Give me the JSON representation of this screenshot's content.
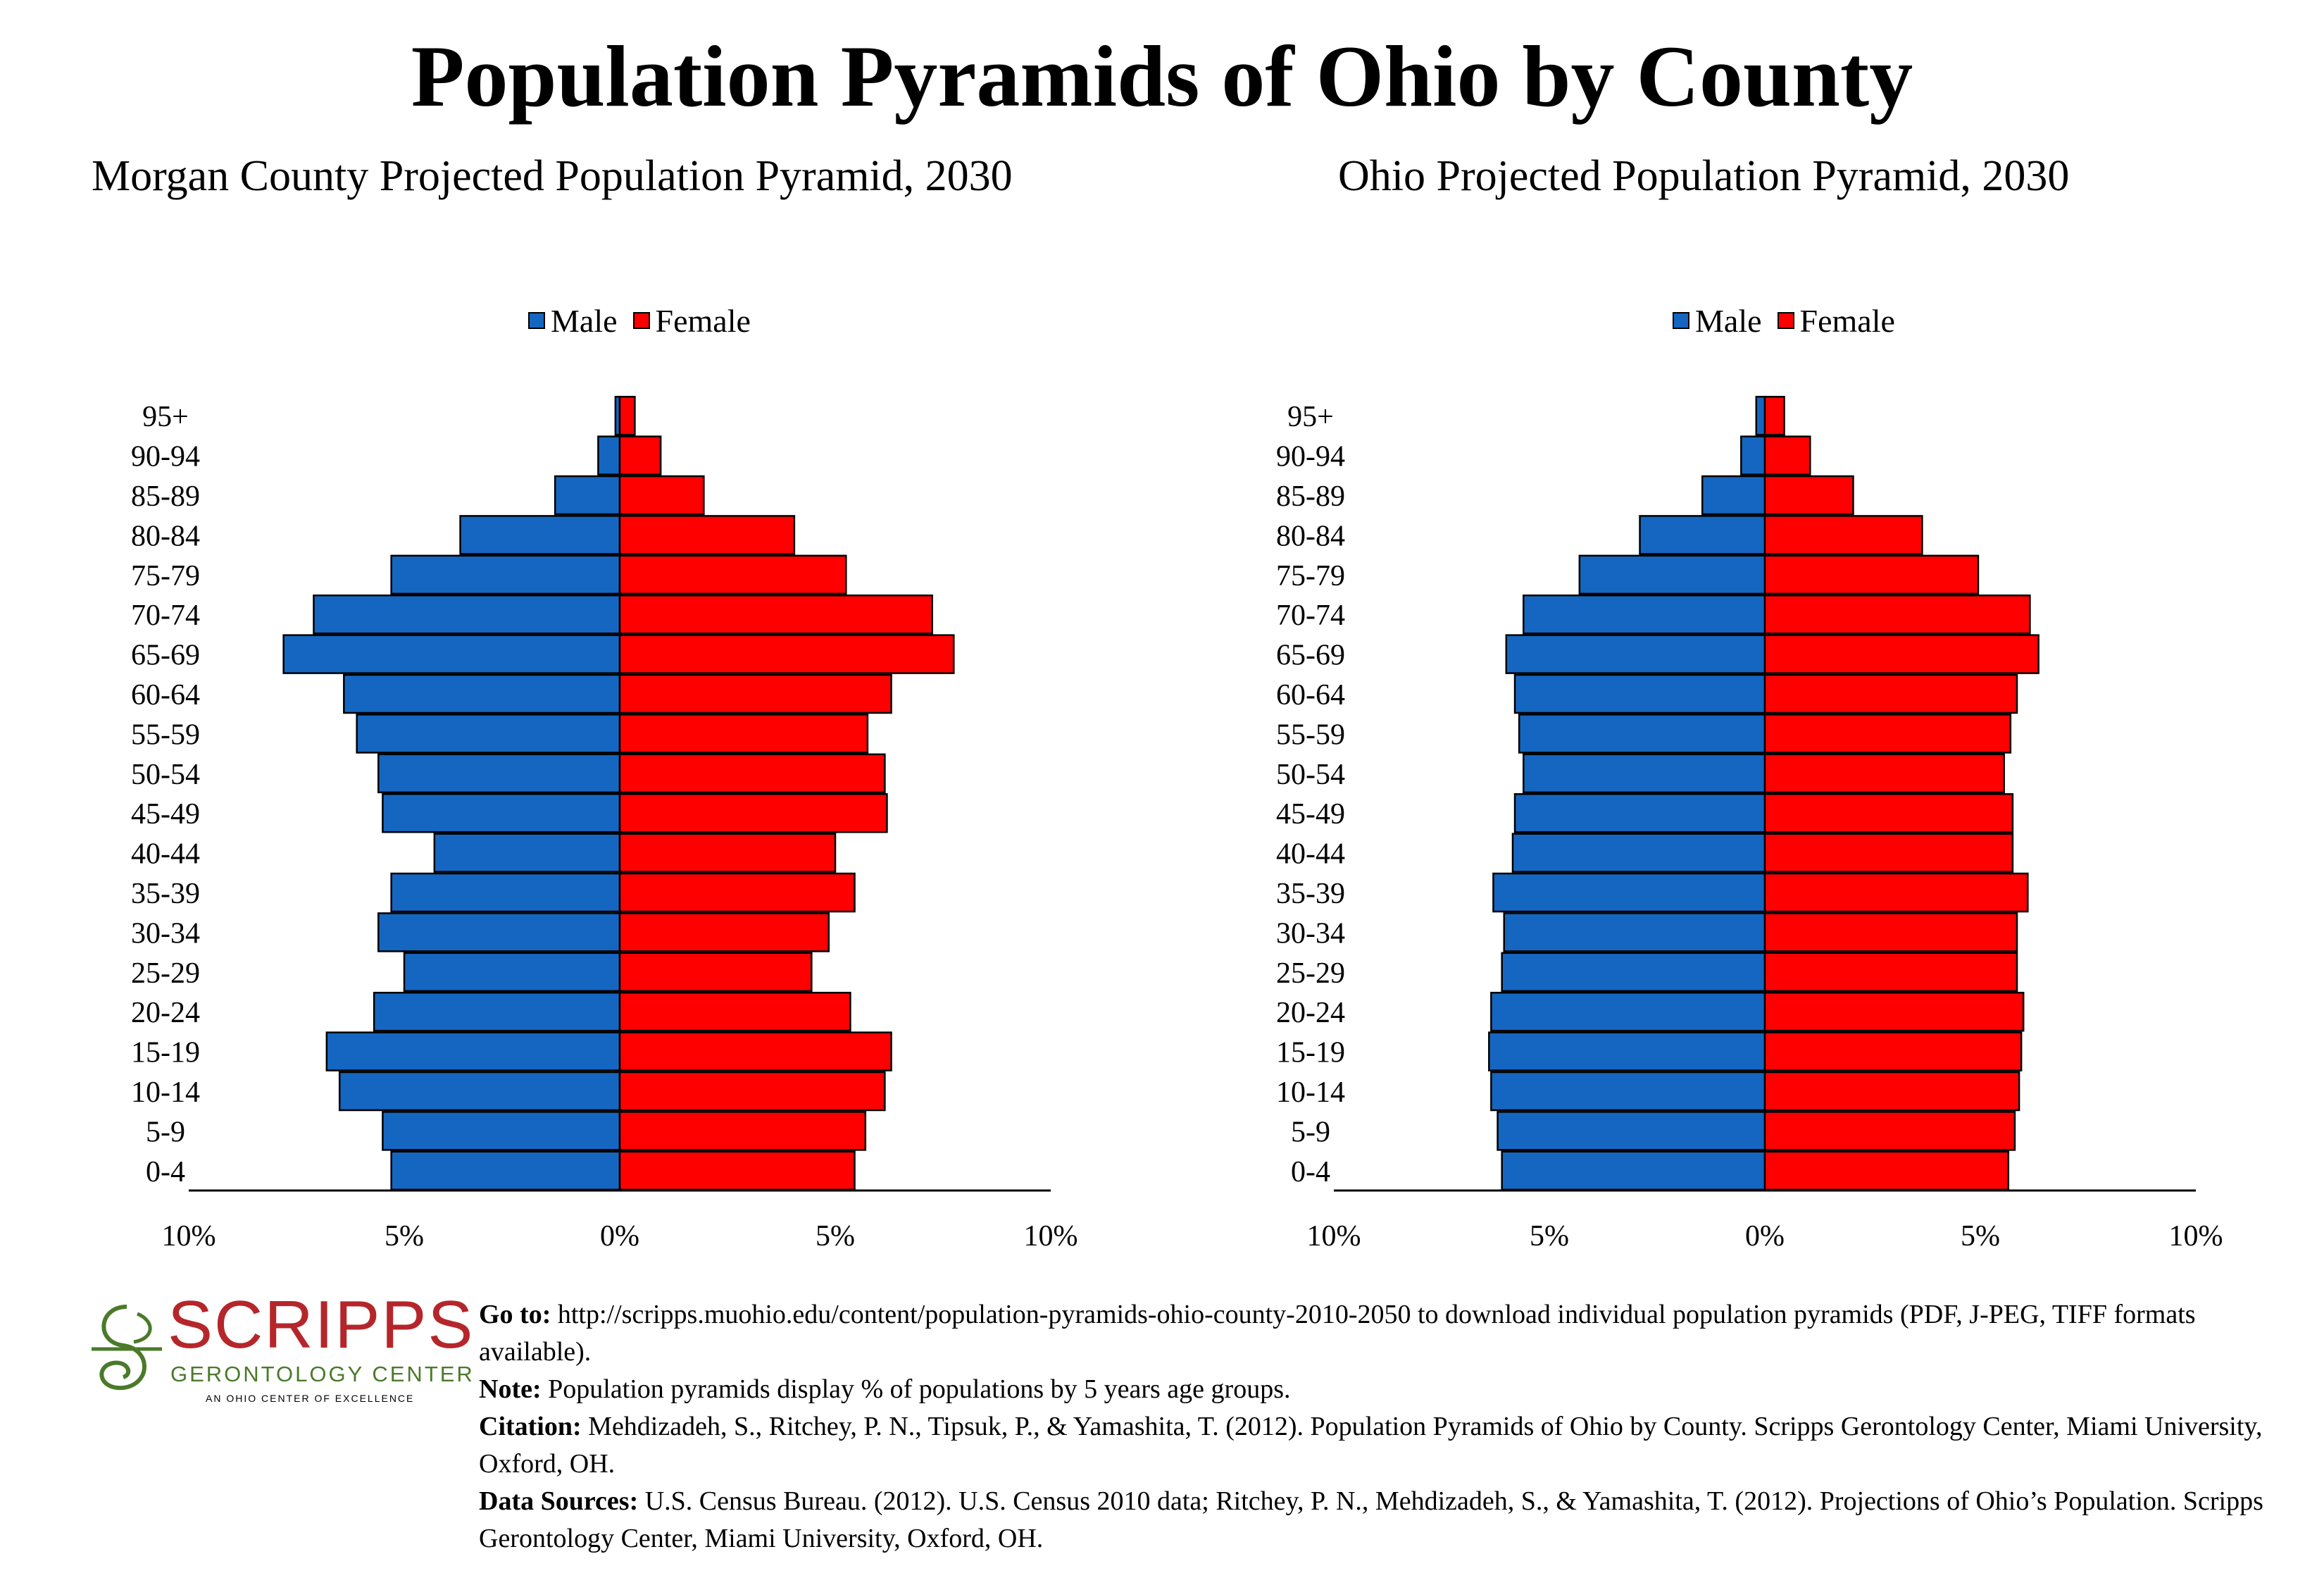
{
  "title": "Population Pyramids of Ohio by County",
  "legend": {
    "male": "Male",
    "female": "Female"
  },
  "colors": {
    "male": "#1566c0",
    "female": "#ff0000"
  },
  "age_groups": [
    "95+",
    "90-94",
    "85-89",
    "80-84",
    "75-79",
    "70-74",
    "65-69",
    "60-64",
    "55-59",
    "50-54",
    "45-49",
    "40-44",
    "35-39",
    "30-34",
    "25-29",
    "20-24",
    "15-19",
    "10-14",
    "5-9",
    "0-4"
  ],
  "x_ticks": [
    "10%",
    "5%",
    "0%",
    "5%",
    "10%"
  ],
  "chart_data": [
    {
      "type": "bar",
      "orientation": "horizontal-pyramid",
      "title": "Morgan County Projected Population Pyramid, 2030",
      "categories": [
        "95+",
        "90-94",
        "85-89",
        "80-84",
        "75-79",
        "70-74",
        "65-69",
        "60-64",
        "55-59",
        "50-54",
        "45-49",
        "40-44",
        "35-39",
        "30-34",
        "25-29",
        "20-24",
        "15-19",
        "10-14",
        "5-9",
        "0-4"
      ],
      "series": [
        {
          "name": "Male",
          "values": [
            0.1,
            0.5,
            1.5,
            3.7,
            5.3,
            7.1,
            7.8,
            6.4,
            6.1,
            5.6,
            5.5,
            4.3,
            5.3,
            5.6,
            5.0,
            5.7,
            6.8,
            6.5,
            5.5,
            5.3
          ]
        },
        {
          "name": "Female",
          "values": [
            0.35,
            0.95,
            1.95,
            4.05,
            5.25,
            7.25,
            7.75,
            6.3,
            5.75,
            6.15,
            6.2,
            5.0,
            5.45,
            4.85,
            4.45,
            5.35,
            6.3,
            6.15,
            5.7,
            5.45
          ]
        }
      ],
      "xlim": [
        -10,
        10
      ],
      "legend_position": "top-center",
      "grid": false
    },
    {
      "type": "bar",
      "orientation": "horizontal-pyramid",
      "title": "Ohio Projected Population Pyramid, 2030",
      "categories": [
        "95+",
        "90-94",
        "85-89",
        "80-84",
        "75-79",
        "70-74",
        "65-69",
        "60-64",
        "55-59",
        "50-54",
        "45-49",
        "40-44",
        "35-39",
        "30-34",
        "25-29",
        "20-24",
        "15-19",
        "10-14",
        "5-9",
        "0-4"
      ],
      "series": [
        {
          "name": "Male",
          "values": [
            0.2,
            0.55,
            1.45,
            2.9,
            4.3,
            5.6,
            6.0,
            5.8,
            5.7,
            5.6,
            5.8,
            5.85,
            6.3,
            6.05,
            6.1,
            6.35,
            6.4,
            6.35,
            6.2,
            6.1
          ]
        },
        {
          "name": "Female",
          "values": [
            0.45,
            1.05,
            2.05,
            3.65,
            4.95,
            6.15,
            6.35,
            5.85,
            5.7,
            5.55,
            5.75,
            5.75,
            6.1,
            5.85,
            5.85,
            6.0,
            5.95,
            5.9,
            5.8,
            5.65
          ]
        }
      ],
      "xlim": [
        -10,
        10
      ],
      "legend_position": "top-center",
      "grid": false
    }
  ],
  "logo": {
    "name": "SCRIPPS",
    "subtitle": "GERONTOLOGY CENTER",
    "tagline": "AN OHIO CENTER OF EXCELLENCE",
    "red": "#b5262b",
    "green": "#4a7a2a"
  },
  "footer": {
    "goto_label": "Go to:",
    "goto_text": " http://scripps.muohio.edu/content/population-pyramids-ohio-county-2010-2050 to download individual population pyramids (PDF, J-PEG, TIFF formats available).",
    "note_label": "Note:",
    "note_text": " Population pyramids display % of populations by 5 years age groups.",
    "citation_label": "Citation:",
    "citation_text": " Mehdizadeh, S., Ritchey, P. N., Tipsuk, P., & Yamashita, T. (2012). Population Pyramids of Ohio by County. Scripps Gerontology Center, Miami University, Oxford, OH.",
    "sources_label": "Data Sources:",
    "sources_text": " U.S. Census Bureau. (2012). U.S. Census 2010 data; Ritchey, P. N., Mehdizadeh, S., & Yamashita, T. (2012). Projections of Ohio’s Population. Scripps Gerontology Center, Miami University, Oxford, OH."
  }
}
